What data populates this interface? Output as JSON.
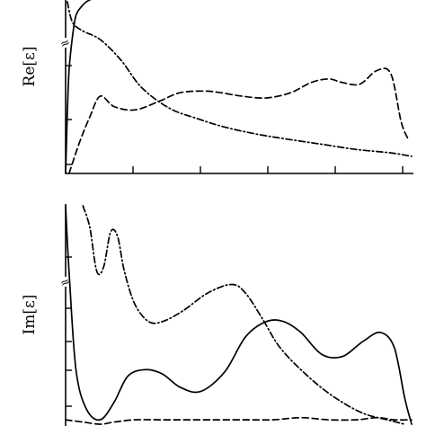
{
  "chart_data": [
    {
      "type": "line",
      "ylabel": "Re[ε]",
      "xlabel": "",
      "axis_break": "≈",
      "x_ticks": 6,
      "y_ticks": 3,
      "grid": false,
      "legend": "none",
      "series": [
        {
          "style": "solid",
          "x": [
            0.0,
            0.005,
            0.01,
            0.02,
            0.03,
            0.045,
            0.06,
            0.08
          ],
          "y": [
            0.0,
            0.35,
            0.6,
            0.8,
            0.92,
            0.97,
            1.0,
            1.02
          ]
        },
        {
          "style": "dashed",
          "x": [
            0.01,
            0.04,
            0.07,
            0.1,
            0.14,
            0.2,
            0.27,
            0.33,
            0.4,
            0.45,
            0.51,
            0.58,
            0.65,
            0.71,
            0.76,
            0.8,
            0.85,
            0.9,
            0.94,
            0.97,
            0.99
          ],
          "y": [
            0.0,
            0.18,
            0.33,
            0.45,
            0.39,
            0.37,
            0.42,
            0.47,
            0.48,
            0.47,
            0.45,
            0.44,
            0.47,
            0.53,
            0.55,
            0.53,
            0.52,
            0.6,
            0.58,
            0.3,
            0.2
          ]
        },
        {
          "style": "dash-dot",
          "x": [
            0.005,
            0.02,
            0.05,
            0.1,
            0.16,
            0.22,
            0.3,
            0.38,
            0.46,
            0.55,
            0.64,
            0.74,
            0.84,
            0.94,
            1.0
          ],
          "y": [
            1.0,
            0.88,
            0.83,
            0.78,
            0.66,
            0.5,
            0.38,
            0.32,
            0.27,
            0.23,
            0.2,
            0.17,
            0.14,
            0.12,
            0.1
          ]
        }
      ]
    },
    {
      "type": "line",
      "ylabel": "Im[ε]",
      "xlabel": "",
      "axis_break": "≈",
      "x_ticks": 0,
      "y_ticks": 5,
      "grid": false,
      "legend": "none",
      "series": [
        {
          "style": "solid",
          "x": [
            0.0,
            0.01,
            0.03,
            0.06,
            0.1,
            0.14,
            0.18,
            0.23,
            0.28,
            0.33,
            0.39,
            0.46,
            0.52,
            0.58,
            0.63,
            0.68,
            0.74,
            0.8,
            0.86,
            0.91,
            0.95,
            0.98,
            1.0
          ],
          "y": [
            1.0,
            0.7,
            0.25,
            0.07,
            0.02,
            0.1,
            0.22,
            0.25,
            0.23,
            0.17,
            0.15,
            0.24,
            0.4,
            0.47,
            0.47,
            0.42,
            0.32,
            0.31,
            0.38,
            0.42,
            0.35,
            0.12,
            0.0
          ]
        },
        {
          "style": "dashed",
          "x": [
            0.0,
            0.05,
            0.1,
            0.14,
            0.2,
            0.28,
            0.36,
            0.44,
            0.52,
            0.6,
            0.68,
            0.76,
            0.84,
            0.9,
            0.95,
            1.0
          ],
          "y": [
            0.02,
            0.01,
            0.0,
            0.01,
            0.02,
            0.02,
            0.02,
            0.02,
            0.02,
            0.02,
            0.03,
            0.02,
            0.02,
            0.03,
            0.02,
            0.02
          ]
        },
        {
          "style": "dash-dot",
          "x": [
            0.05,
            0.07,
            0.09,
            0.11,
            0.13,
            0.15,
            0.17,
            0.2,
            0.24,
            0.28,
            0.34,
            0.41,
            0.48,
            0.52,
            0.57,
            0.62,
            0.7,
            0.78,
            0.86,
            0.93,
            0.98
          ],
          "y": [
            1.0,
            0.9,
            0.7,
            0.72,
            0.88,
            0.86,
            0.7,
            0.55,
            0.47,
            0.47,
            0.52,
            0.6,
            0.64,
            0.6,
            0.48,
            0.35,
            0.22,
            0.12,
            0.05,
            0.02,
            0.0
          ]
        }
      ]
    }
  ]
}
